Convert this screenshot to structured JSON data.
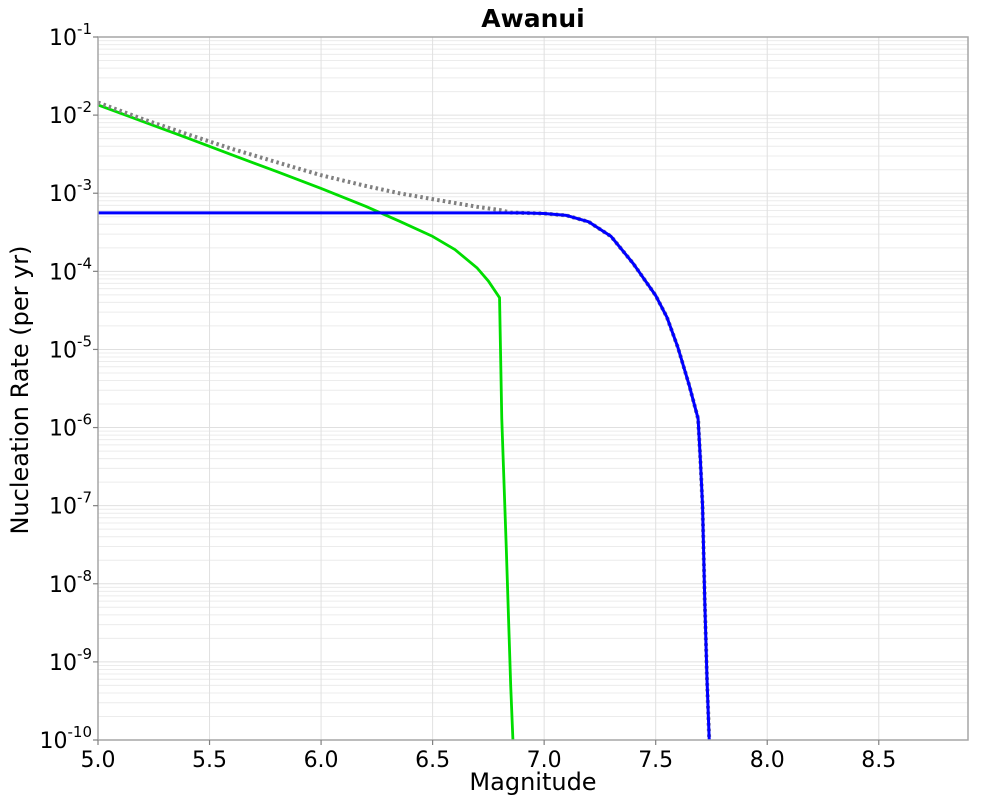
{
  "chart_data": {
    "type": "line",
    "title": "Awanui",
    "xlabel": "Magnitude",
    "ylabel": "Nucleation Rate (per yr)",
    "xlim": [
      5.0,
      8.9
    ],
    "ylim_exponents": [
      -10,
      -1
    ],
    "x_ticks": [
      "5.0",
      "5.5",
      "6.0",
      "6.5",
      "7.0",
      "7.5",
      "8.0",
      "8.5"
    ],
    "x_tick_values": [
      5.0,
      5.5,
      6.0,
      6.5,
      7.0,
      7.5,
      8.0,
      8.5
    ],
    "y_tick_exponents": [
      -1,
      -2,
      -3,
      -4,
      -5,
      -6,
      -7,
      -8,
      -9,
      -10
    ],
    "grid": "on",
    "legend": "none",
    "colors": {
      "grid_minor": "#ececec",
      "grid_major": "#e0e0e0",
      "border": "#a6a6a6",
      "tick": "#808080",
      "text": "#000000"
    },
    "series": [
      {
        "id": "green-curve",
        "color": "#00dd00",
        "style": "solid",
        "width": 2.8,
        "points": [
          [
            5.0,
            0.0135
          ],
          [
            5.2,
            0.0083
          ],
          [
            5.4,
            0.0051
          ],
          [
            5.6,
            0.0031
          ],
          [
            5.8,
            0.0019
          ],
          [
            6.0,
            0.00115
          ],
          [
            6.2,
            0.00068
          ],
          [
            6.35,
            0.00044
          ],
          [
            6.5,
            0.00028
          ],
          [
            6.6,
            0.00019
          ],
          [
            6.7,
            0.00011
          ],
          [
            6.75,
            7.5e-05
          ],
          [
            6.8,
            4.6e-05
          ],
          [
            6.81,
            1.3e-06
          ],
          [
            6.83,
            3e-08
          ],
          [
            6.85,
            5e-10
          ],
          [
            6.86,
            1e-10
          ]
        ]
      },
      {
        "id": "total-dotted-curve",
        "color": "#808080",
        "style": "dotted",
        "width": 4,
        "points": [
          [
            5.0,
            0.0145
          ],
          [
            5.2,
            0.0089
          ],
          [
            5.4,
            0.0057
          ],
          [
            5.6,
            0.0037
          ],
          [
            5.8,
            0.0025
          ],
          [
            6.0,
            0.0017
          ],
          [
            6.2,
            0.00124
          ],
          [
            6.35,
            0.001
          ],
          [
            6.5,
            0.00084
          ],
          [
            6.6,
            0.00075
          ],
          [
            6.7,
            0.00067
          ],
          [
            6.8,
            0.00061
          ],
          [
            6.85,
            0.000565
          ],
          [
            7.0,
            0.00055
          ],
          [
            7.1,
            0.00052
          ],
          [
            7.2,
            0.00043
          ],
          [
            7.3,
            0.00028
          ],
          [
            7.4,
            0.000125
          ],
          [
            7.5,
            4.9e-05
          ],
          [
            7.55,
            2.6e-05
          ],
          [
            7.6,
            1.05e-05
          ],
          [
            7.65,
            3.5e-06
          ],
          [
            7.69,
            1.3e-06
          ],
          [
            7.7,
            4e-07
          ],
          [
            7.71,
            1e-07
          ],
          [
            7.72,
            6e-09
          ],
          [
            7.73,
            6e-10
          ],
          [
            7.74,
            1e-10
          ]
        ]
      },
      {
        "id": "blue-curve",
        "color": "#0000ff",
        "style": "solid",
        "width": 3,
        "points": [
          [
            5.0,
            0.00056
          ],
          [
            6.9,
            0.00056
          ],
          [
            7.0,
            0.00055
          ],
          [
            7.1,
            0.00052
          ],
          [
            7.2,
            0.00043
          ],
          [
            7.3,
            0.00028
          ],
          [
            7.4,
            0.000125
          ],
          [
            7.5,
            4.9e-05
          ],
          [
            7.55,
            2.6e-05
          ],
          [
            7.6,
            1.05e-05
          ],
          [
            7.65,
            3.5e-06
          ],
          [
            7.69,
            1.3e-06
          ],
          [
            7.7,
            4e-07
          ],
          [
            7.71,
            1e-07
          ],
          [
            7.72,
            6e-09
          ],
          [
            7.73,
            6e-10
          ],
          [
            7.74,
            1e-10
          ]
        ]
      }
    ]
  }
}
